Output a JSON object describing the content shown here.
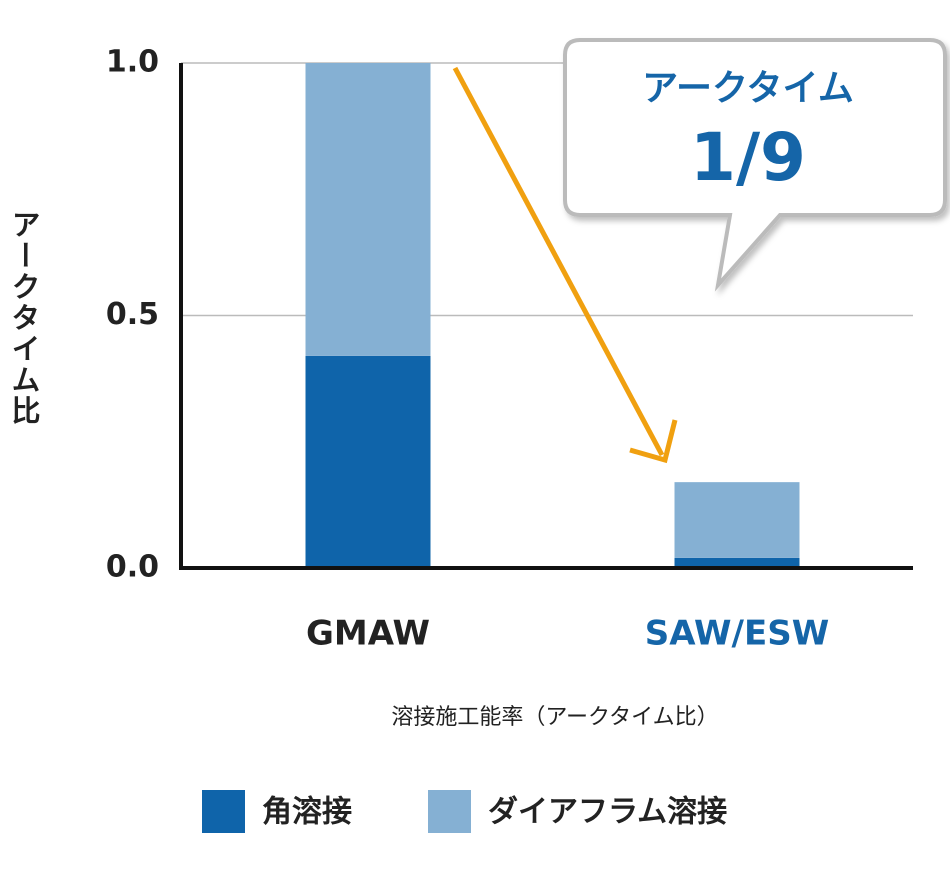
{
  "chart_data": {
    "type": "stacked_bar",
    "y_label": "アークタイム比",
    "x_label": "溶接施工能率（アークタイム比）",
    "categories": [
      "GMAW",
      "SAW/ESW"
    ],
    "category_label_colors": [
      "#222222",
      "#1565a8"
    ],
    "series": [
      {
        "name": "角溶接",
        "color": "#0f64aa",
        "values": [
          0.42,
          0.02
        ]
      },
      {
        "name": "ダイアフラム溶接",
        "color": "#85b0d3",
        "values": [
          0.58,
          0.15
        ]
      }
    ],
    "ylim": [
      0,
      1.0
    ],
    "yticks": [
      {
        "value": 0,
        "label": "0.0"
      },
      {
        "value": 0.5,
        "label": "0.5"
      },
      {
        "value": 1.0,
        "label": "1.0"
      }
    ],
    "grid": true,
    "annotations": [
      "アークタイム",
      "1/9"
    ],
    "arrow_color": "#f0a010"
  }
}
